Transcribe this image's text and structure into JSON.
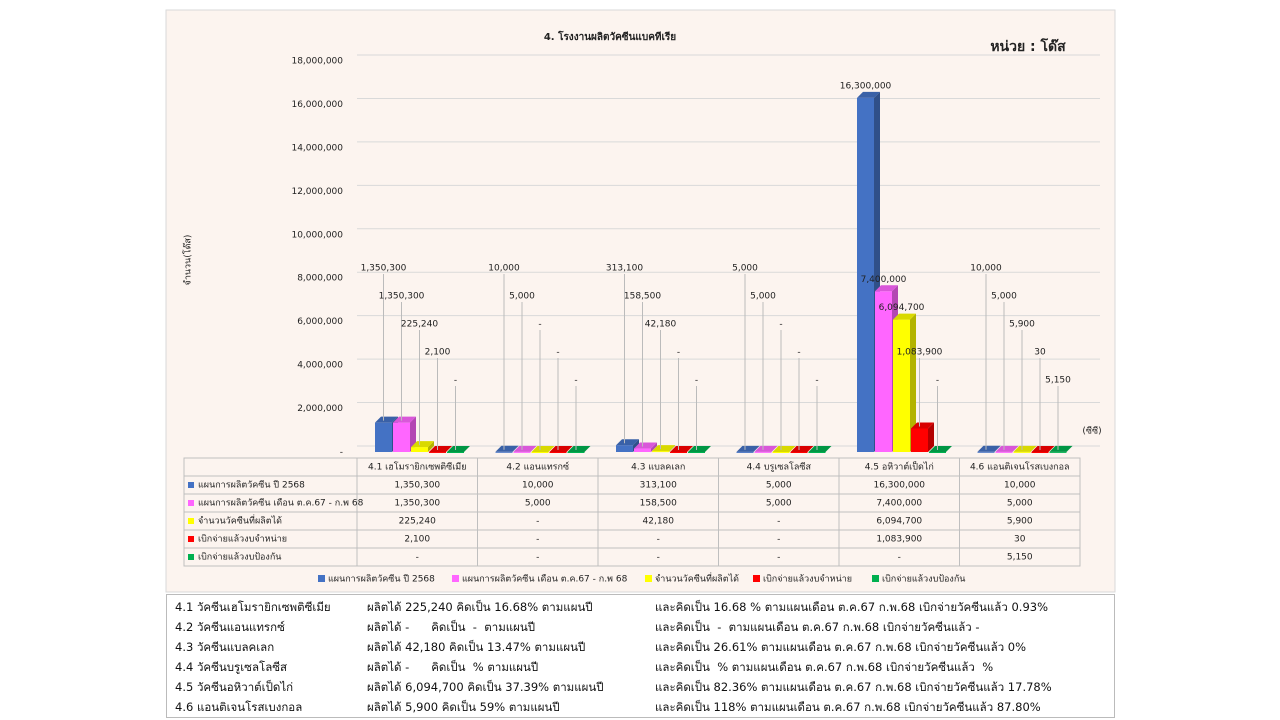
{
  "chart_data": {
    "type": "bar3d",
    "title": "4. โรงงานผลิตวัคซีนแบคทีเรีย",
    "annotation": "หน่วย : โด๊ส",
    "y_label": "จำนวน(โด๊ส)",
    "x_unit": "(ซีซี)",
    "categories": [
      "4.1 เฮโมรายิกเซพติซีเมีย",
      "4.2 แอนแทรกซ์",
      "4.3 แบลคเลก",
      "4.4 บรูเซลโลซีส",
      "4.5 อหิวาต์เป็ดไก่",
      "4.6 แอนติเจนโรสเบงกอล"
    ],
    "series": [
      {
        "name": "แผนการผลิตวัคซีน ปี 2568",
        "color": "#4472c4",
        "values": [
          1350300,
          10000,
          313100,
          5000,
          16300000,
          10000
        ],
        "value_labels": [
          "1,350,300",
          "10,000",
          "313,100",
          "5,000",
          "16,300,000",
          "10,000"
        ]
      },
      {
        "name": "แผนการผลิตวัคซีน เดือน ต.ค.67 - ก.พ 68",
        "color": "#ff66ff",
        "values": [
          1350300,
          5000,
          158500,
          5000,
          7400000,
          5000
        ],
        "value_labels": [
          "1,350,300",
          "5,000",
          "158,500",
          "5,000",
          "7,400,000",
          "5,000"
        ]
      },
      {
        "name": "จำนวนวัคซีนที่ผลิตได้",
        "color": "#ffff00",
        "values": [
          225240,
          0,
          42180,
          0,
          6094700,
          5900
        ],
        "value_labels": [
          "225,240",
          "-",
          "42,180",
          "-",
          "6,094,700",
          "5,900"
        ]
      },
      {
        "name": "เบิกจ่ายแล้วงบจำหน่าย",
        "color": "#ff0000",
        "values": [
          2100,
          0,
          0,
          0,
          1083900,
          30
        ],
        "value_labels": [
          "2,100",
          "-",
          "-",
          "-",
          "1,083,900",
          "30"
        ]
      },
      {
        "name": "เบิกจ่ายแล้วงบป้องกัน",
        "color": "#00b050",
        "values": [
          0,
          0,
          0,
          0,
          0,
          5150
        ],
        "value_labels": [
          "-",
          "-",
          "-",
          "-",
          "-",
          "5,150"
        ]
      }
    ],
    "ylim": [
      0,
      18000000
    ],
    "yticks": [
      {
        "value": 0,
        "label": "-"
      },
      {
        "value": 2000000,
        "label": "2,000,000"
      },
      {
        "value": 4000000,
        "label": "4,000,000"
      },
      {
        "value": 6000000,
        "label": "6,000,000"
      },
      {
        "value": 8000000,
        "label": "8,000,000"
      },
      {
        "value": 10000000,
        "label": "10,000,000"
      },
      {
        "value": 12000000,
        "label": "12,000,000"
      },
      {
        "value": 14000000,
        "label": "14,000,000"
      },
      {
        "value": 16000000,
        "label": "16,000,000"
      },
      {
        "value": 18000000,
        "label": "18,000,000"
      }
    ],
    "grid": true
  },
  "summary": {
    "rows": [
      [
        "4.1 วัคซีนเฮโมรายิกเซพติซีเมีย",
        "ผลิตได้ 225,240 คิดเป็น 16.68% ตามแผนปี",
        "และคิดเป็น 16.68 % ตามแผนเดือน ต.ค.67 ก.พ.68 เบิกจ่ายวัคซีนแล้ว 0.93%"
      ],
      [
        "4.2 วัคซีนแอนแทรกซ์",
        "ผลิตได้ -      คิดเป็น  -  ตามแผนปี",
        "และคิดเป็น  -  ตามแผนเดือน ต.ค.67 ก.พ.68 เบิกจ่ายวัคซีนแล้ว -"
      ],
      [
        "4.3 วัคซีนแบลคเลก",
        "ผลิตได้ 42,180 คิดเป็น 13.47% ตามแผนปี",
        "และคิดเป็น 26.61% ตามแผนเดือน ต.ค.67 ก.พ.68 เบิกจ่ายวัคซีนแล้ว 0%"
      ],
      [
        "4.4 วัคซีนบรูเซลโลซีส",
        "ผลิตได้ -      คิดเป็น  % ตามแผนปี",
        "และคิดเป็น  % ตามแผนเดือน ต.ค.67 ก.พ.68 เบิกจ่ายวัคซีนแล้ว  %"
      ],
      [
        "4.5 วัคซีนอหิวาต์เป็ดไก่",
        "ผลิตได้ 6,094,700 คิดเป็น 37.39% ตามแผนปี",
        "และคิดเป็น 82.36% ตามแผนเดือน ต.ค.67 ก.พ.68 เบิกจ่ายวัคซีนแล้ว 17.78%"
      ],
      [
        "4.6 แอนติเจนโรสเบงกอล",
        "ผลิตได้ 5,900 คิดเป็น 59% ตามแผนปี",
        "และคิดเป็น 118% ตามแผนเดือน ต.ค.67 ก.พ.68 เบิกจ่ายวัคซีนแล้ว 87.80%"
      ]
    ]
  }
}
